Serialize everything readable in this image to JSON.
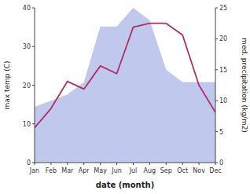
{
  "chart_data": {
    "type": "line",
    "xlabel": "date (month)",
    "ylabel": "max temp (C)",
    "y2label": "med. precipitation (kg/m2)",
    "categories": [
      "Jan",
      "Feb",
      "Mar",
      "Apr",
      "May",
      "Jun",
      "Jul",
      "Aug",
      "Sep",
      "Oct",
      "Nov",
      "Dec"
    ],
    "series": [
      {
        "type": "area",
        "axis": "y2",
        "color": "#c0c8ee",
        "values": [
          9,
          10,
          11,
          13,
          22,
          22,
          25,
          23,
          15,
          13,
          13,
          13
        ]
      },
      {
        "type": "line",
        "color": "#b03060",
        "values": [
          9,
          14,
          21,
          19,
          25,
          23,
          35,
          36,
          36,
          33,
          20,
          13
        ]
      }
    ],
    "ylim": [
      0,
      40
    ],
    "yticks": [
      0,
      10,
      20,
      30,
      40
    ],
    "y2lim": [
      0,
      25
    ],
    "y2ticks": [
      0,
      5,
      10,
      15,
      20,
      25
    ],
    "grid": false
  }
}
